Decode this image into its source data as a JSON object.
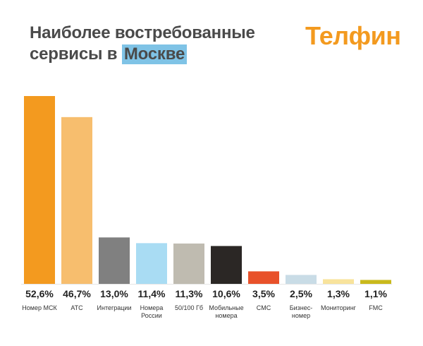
{
  "header": {
    "title_line1": "Наиболее востребованные",
    "title_line2_prefix": "сервисы в ",
    "title_line2_highlight": "Москве",
    "logo": "Телфин"
  },
  "colors": {
    "title": "#4a4a4a",
    "highlight": "#7fc3e6",
    "brand": "#f39a1f",
    "baseline": "#e6e6e6"
  },
  "chart_data": {
    "type": "bar",
    "categories": [
      "Номер МСК",
      "АТС",
      "Интеграции",
      "Номера России",
      "50/100 Гб",
      "Мобильные номера",
      "СМС",
      "Бизнес-номер",
      "Мониторинг",
      "FMC"
    ],
    "category_lines": [
      [
        "Номер МСК"
      ],
      [
        "АТС"
      ],
      [
        "Интеграции"
      ],
      [
        "Номера",
        "России"
      ],
      [
        "50/100 Гб"
      ],
      [
        "Мобильные",
        "номера"
      ],
      [
        "СМС"
      ],
      [
        "Бизнес-",
        "номер"
      ],
      [
        "Мониторинг"
      ],
      [
        "FMC"
      ]
    ],
    "values": [
      52.6,
      46.7,
      13.0,
      11.4,
      11.3,
      10.6,
      3.5,
      2.5,
      1.3,
      1.1
    ],
    "value_labels": [
      "52,6%",
      "46,7%",
      "13,0%",
      "11,4%",
      "11,3%",
      "10,6%",
      "3,5%",
      "2,5%",
      "1,3%",
      "1,1%"
    ],
    "colors": [
      "#f39a1f",
      "#f7be6e",
      "#808080",
      "#a9dcf3",
      "#bfbbb0",
      "#2b2725",
      "#e8512a",
      "#c9dce6",
      "#f8e39c",
      "#c9b91c"
    ],
    "ylim": [
      0,
      53
    ],
    "grid": false,
    "legend": "none"
  }
}
